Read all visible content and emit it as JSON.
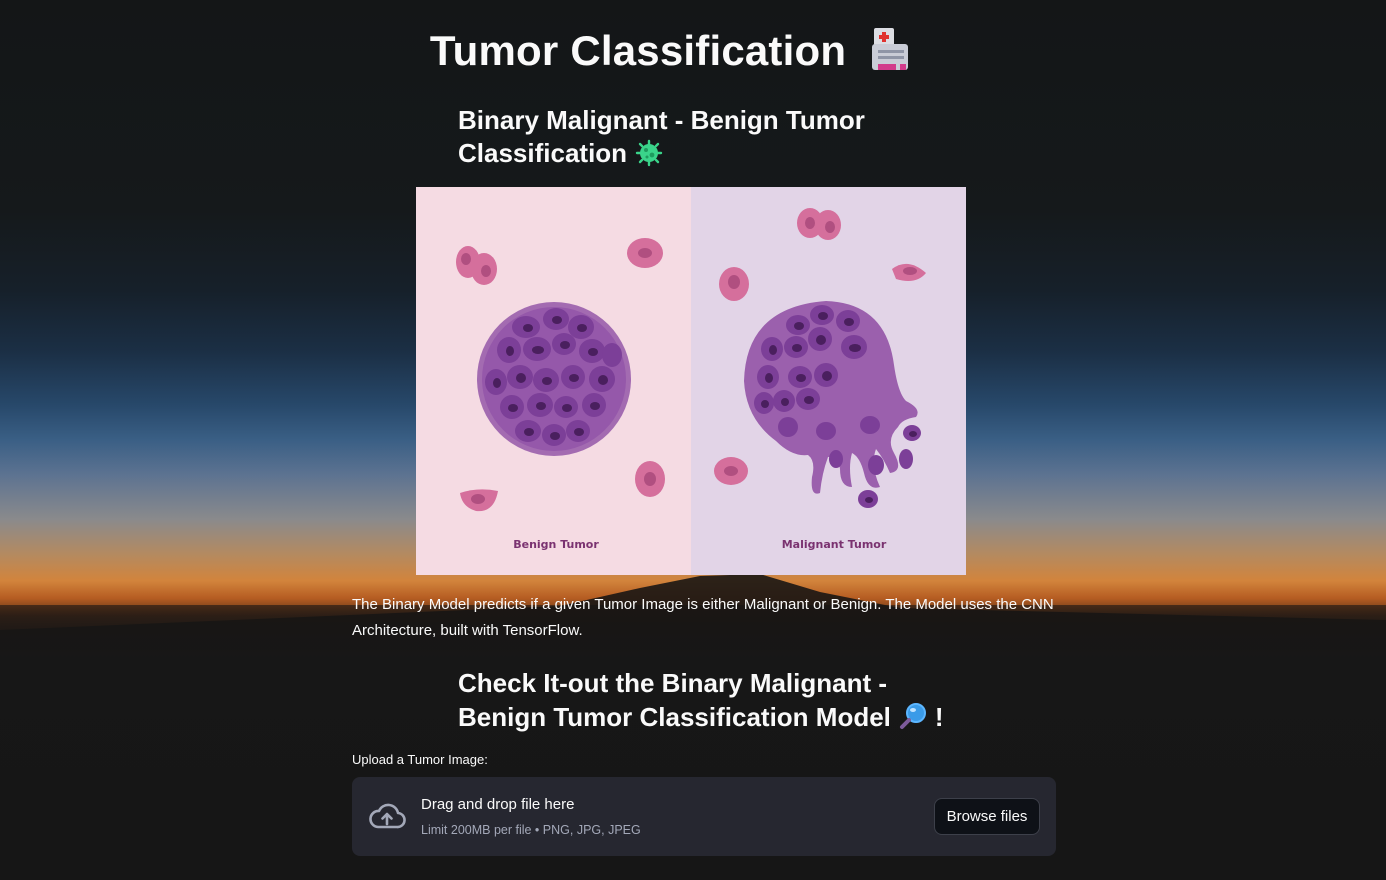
{
  "app": {
    "title": "Tumor Classification"
  },
  "section1": {
    "heading": "Binary Malignant - Benign Tumor Classification"
  },
  "hero_image": {
    "left_caption": "Benign Tumor",
    "right_caption": "Malignant Tumor",
    "colors": {
      "left_bg": "#f5dbe3",
      "right_bg": "#e2d4e7",
      "cell": "#d56f9c",
      "tumor": "#7c3f98"
    }
  },
  "description": "The Binary Model predicts if a given Tumor Image is either Malignant or Benign. The Model uses the CNN Architecture, built with TensorFlow.",
  "section2": {
    "heading": "Check It-out the Binary Malignant - Benign Tumor Classification Model",
    "heading_suffix": "!"
  },
  "uploader": {
    "label": "Upload a Tumor Image:",
    "drop_text": "Drag and drop file here",
    "limit_text": "Limit 200MB per file • PNG, JPG, JPEG",
    "button_label": "Browse files",
    "icon": "cloud-upload-icon"
  }
}
